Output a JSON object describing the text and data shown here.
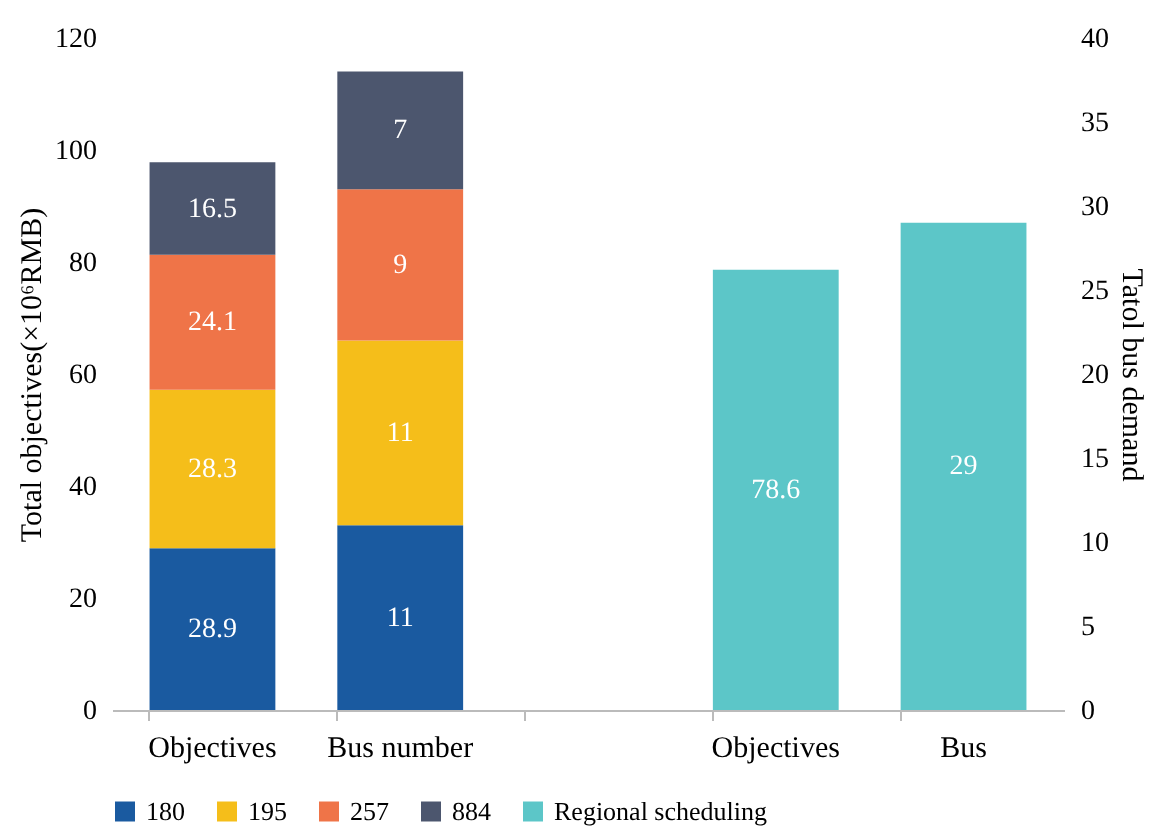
{
  "chart_data": {
    "type": "bar",
    "stacked": true,
    "categories": [
      "Objectives",
      "Bus number",
      null,
      "Objectives",
      "Bus"
    ],
    "ylabel": "Total objectives(×10⁶RMB)",
    "y2label": "Tatol bus demand",
    "ylim": [
      0,
      120
    ],
    "yticks": [
      0,
      20,
      40,
      60,
      80,
      100,
      120
    ],
    "y2lim": [
      0,
      40
    ],
    "y2ticks": [
      0,
      5,
      10,
      15,
      20,
      25,
      30,
      35,
      40
    ],
    "series": [
      {
        "name": "180",
        "color": "#1a5aa0",
        "axis": "y",
        "values": [
          28.9,
          null,
          null,
          null,
          null
        ]
      },
      {
        "name": "195",
        "color": "#f5be1a",
        "axis": "y",
        "values": [
          28.3,
          null,
          null,
          null,
          null
        ]
      },
      {
        "name": "257",
        "color": "#ef7448",
        "axis": "y",
        "values": [
          24.1,
          null,
          null,
          null,
          null
        ]
      },
      {
        "name": "884",
        "color": "#4c566e",
        "axis": "y",
        "values": [
          16.5,
          null,
          null,
          null,
          null
        ]
      },
      {
        "name": "Regional scheduling",
        "color": "#5cc6c8",
        "axis": "y",
        "values": [
          null,
          null,
          null,
          78.6,
          null
        ]
      },
      {
        "color": "#1a5aa0",
        "axis": "y2",
        "values": [
          null,
          11,
          null,
          null,
          null
        ]
      },
      {
        "color": "#f5be1a",
        "axis": "y2",
        "values": [
          null,
          11,
          null,
          null,
          null
        ]
      },
      {
        "color": "#ef7448",
        "axis": "y2",
        "values": [
          null,
          9,
          null,
          null,
          null
        ]
      },
      {
        "color": "#4c566e",
        "axis": "y2",
        "values": [
          null,
          7,
          null,
          null,
          null
        ]
      },
      {
        "color": "#5cc6c8",
        "axis": "y2",
        "values": [
          null,
          null,
          null,
          null,
          29
        ]
      }
    ],
    "data_labels": true,
    "legend": "bottom",
    "grid": false
  }
}
